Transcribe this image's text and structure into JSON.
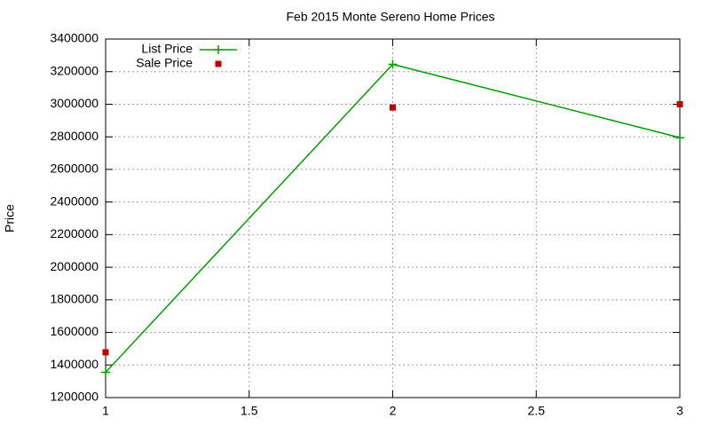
{
  "chart_data": {
    "type": "line",
    "title": "Feb 2015 Monte Sereno Home Prices",
    "y_label": "Price",
    "x": [
      1,
      2,
      3
    ],
    "series": [
      {
        "name": "List Price",
        "color": "#00a000",
        "style": "linespoints",
        "values": [
          1355000,
          3245000,
          2795000
        ]
      },
      {
        "name": "Sale Price",
        "color": "#c00000",
        "style": "points",
        "values": [
          1478000,
          2980000,
          3000000
        ]
      }
    ],
    "xlim": [
      1,
      3
    ],
    "xticks": [
      1,
      1.5,
      2,
      2.5,
      3
    ],
    "ylim": [
      1200000,
      3400000
    ],
    "yticks": [
      1200000,
      1400000,
      1600000,
      1800000,
      2000000,
      2200000,
      2400000,
      2600000,
      2800000,
      3000000,
      3200000,
      3400000
    ],
    "grid": true,
    "legend": "top-left"
  }
}
